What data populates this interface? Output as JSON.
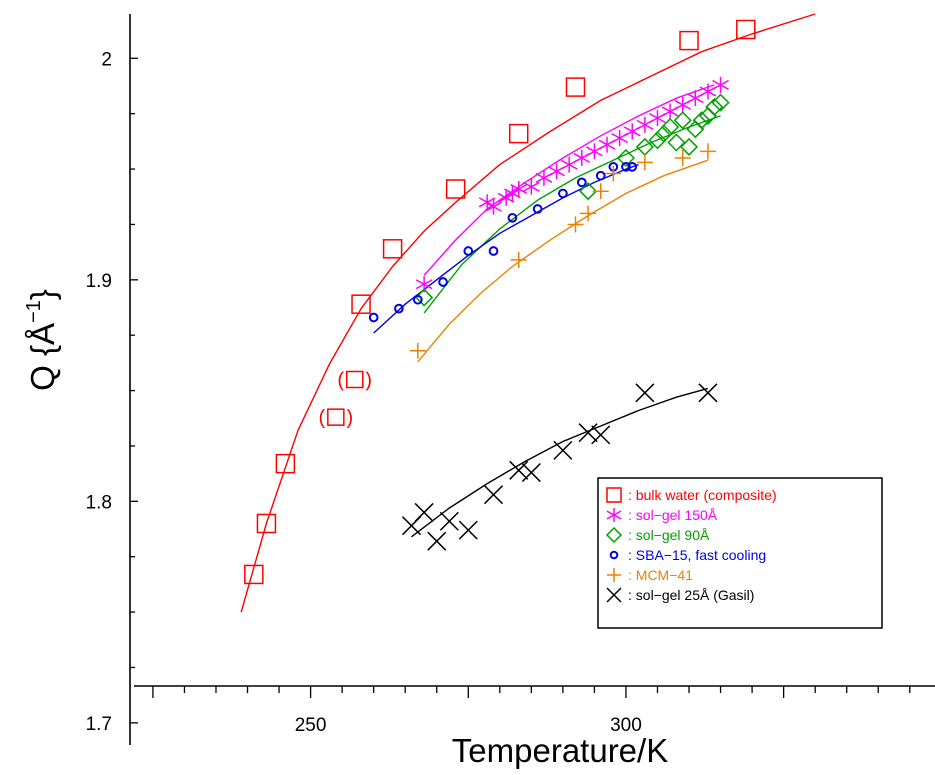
{
  "chart_data": {
    "type": "scatter",
    "xlabel": "Temperature/K",
    "ylabel": "Q  {Å",
    "ylabel_sup": "−1",
    "ylabel_close": "}",
    "x_ticks": [
      250,
      300
    ],
    "x_tick_labels": [
      "250",
      "300"
    ],
    "y_ticks": [
      1.7,
      1.8,
      1.9,
      2.0
    ],
    "y_tick_labels": [
      "1.7",
      "1.8",
      "1.9",
      "2"
    ],
    "xlim": [
      222,
      349
    ],
    "ylim": [
      1.69,
      2.02
    ],
    "grid": false,
    "legend_position": "lower-right",
    "series": [
      {
        "name": ": bulk water (composite)",
        "marker": "square",
        "color": "#ff0000",
        "points": [
          [
            241,
            1.767
          ],
          [
            243,
            1.79
          ],
          [
            246,
            1.817
          ],
          [
            258,
            1.889
          ],
          [
            263,
            1.914
          ],
          [
            273,
            1.941
          ],
          [
            283,
            1.966
          ],
          [
            292,
            1.987
          ],
          [
            310,
            2.008
          ],
          [
            319,
            2.013
          ]
        ],
        "fit": [
          [
            239,
            1.75
          ],
          [
            243,
            1.79
          ],
          [
            248,
            1.832
          ],
          [
            253,
            1.862
          ],
          [
            258,
            1.887
          ],
          [
            263,
            1.906
          ],
          [
            268,
            1.922
          ],
          [
            273,
            1.935
          ],
          [
            280,
            1.952
          ],
          [
            288,
            1.967
          ],
          [
            296,
            1.981
          ],
          [
            304,
            1.992
          ],
          [
            312,
            2.003
          ],
          [
            320,
            2.011
          ],
          [
            330,
            2.02
          ]
        ]
      },
      {
        "name": "bracketed",
        "marker": "square-bracketed",
        "color": "#ff0000",
        "points": [
          [
            254,
            1.838
          ],
          [
            257,
            1.855
          ]
        ]
      },
      {
        "name": ": sol−gel 150Å",
        "marker": "star",
        "color": "#ff00ff",
        "points": [
          [
            268,
            1.898
          ],
          [
            278,
            1.935
          ],
          [
            279,
            1.933
          ],
          [
            281,
            1.937
          ],
          [
            282,
            1.939
          ],
          [
            283,
            1.941
          ],
          [
            285,
            1.942
          ],
          [
            287,
            1.946
          ],
          [
            289,
            1.949
          ],
          [
            291,
            1.952
          ],
          [
            293,
            1.955
          ],
          [
            295,
            1.958
          ],
          [
            297,
            1.961
          ],
          [
            299,
            1.964
          ],
          [
            301,
            1.967
          ],
          [
            303,
            1.97
          ],
          [
            305,
            1.973
          ],
          [
            307,
            1.976
          ],
          [
            309,
            1.979
          ],
          [
            311,
            1.982
          ],
          [
            313,
            1.985
          ],
          [
            315,
            1.988
          ]
        ],
        "fit": [
          [
            268,
            1.902
          ],
          [
            273,
            1.918
          ],
          [
            278,
            1.932
          ],
          [
            284,
            1.944
          ],
          [
            290,
            1.955
          ],
          [
            296,
            1.965
          ],
          [
            302,
            1.974
          ],
          [
            308,
            1.982
          ],
          [
            314,
            1.988
          ]
        ]
      },
      {
        "name": ": sol−gel 90Å",
        "marker": "diamond",
        "color": "#00a000",
        "points": [
          [
            268,
            1.892
          ],
          [
            294,
            1.94
          ],
          [
            300,
            1.955
          ],
          [
            303,
            1.96
          ],
          [
            305,
            1.963
          ],
          [
            306,
            1.966
          ],
          [
            307,
            1.969
          ],
          [
            308,
            1.962
          ],
          [
            309,
            1.972
          ],
          [
            310,
            1.96
          ],
          [
            311,
            1.968
          ],
          [
            312,
            1.972
          ],
          [
            313,
            1.974
          ],
          [
            314,
            1.978
          ],
          [
            315,
            1.98
          ]
        ],
        "fit": [
          [
            268,
            1.885
          ],
          [
            274,
            1.907
          ],
          [
            280,
            1.923
          ],
          [
            286,
            1.936
          ],
          [
            292,
            1.946
          ],
          [
            298,
            1.954
          ],
          [
            304,
            1.962
          ],
          [
            310,
            1.969
          ],
          [
            315,
            1.974
          ]
        ]
      },
      {
        "name": ": SBA−15, fast cooling",
        "marker": "circle",
        "color": "#0000e0",
        "points": [
          [
            260,
            1.883
          ],
          [
            264,
            1.887
          ],
          [
            267,
            1.891
          ],
          [
            271,
            1.899
          ],
          [
            275,
            1.913
          ],
          [
            279,
            1.913
          ],
          [
            282,
            1.928
          ],
          [
            286,
            1.932
          ],
          [
            290,
            1.939
          ],
          [
            293,
            1.944
          ],
          [
            296,
            1.947
          ],
          [
            298,
            1.951
          ],
          [
            300,
            1.951
          ],
          [
            301,
            1.951
          ]
        ],
        "fit": [
          [
            260,
            1.876
          ],
          [
            265,
            1.889
          ],
          [
            270,
            1.9
          ],
          [
            275,
            1.911
          ],
          [
            280,
            1.921
          ],
          [
            285,
            1.929
          ],
          [
            290,
            1.937
          ],
          [
            295,
            1.944
          ],
          [
            300,
            1.95
          ],
          [
            302,
            1.952
          ]
        ]
      },
      {
        "name": ": MCM−41",
        "marker": "plus",
        "color": "#ee8000",
        "points": [
          [
            267,
            1.868
          ],
          [
            283,
            1.909
          ],
          [
            292,
            1.925
          ],
          [
            294,
            1.93
          ],
          [
            296,
            1.94
          ],
          [
            298,
            1.948
          ],
          [
            303,
            1.953
          ],
          [
            309,
            1.955
          ],
          [
            313,
            1.958
          ]
        ],
        "fit": [
          [
            267,
            1.863
          ],
          [
            272,
            1.88
          ],
          [
            277,
            1.894
          ],
          [
            282,
            1.906
          ],
          [
            288,
            1.918
          ],
          [
            294,
            1.929
          ],
          [
            300,
            1.939
          ],
          [
            306,
            1.947
          ],
          [
            313,
            1.954
          ]
        ]
      },
      {
        "name": ": sol−gel 25Å  (Gasil)",
        "marker": "x",
        "color": "#000000",
        "points": [
          [
            266,
            1.789
          ],
          [
            268,
            1.795
          ],
          [
            270,
            1.782
          ],
          [
            272,
            1.791
          ],
          [
            275,
            1.787
          ],
          [
            279,
            1.803
          ],
          [
            283,
            1.814
          ],
          [
            285,
            1.813
          ],
          [
            290,
            1.823
          ],
          [
            294,
            1.831
          ],
          [
            296,
            1.83
          ],
          [
            303,
            1.849
          ],
          [
            313,
            1.849
          ]
        ],
        "fit": [
          [
            266,
            1.784
          ],
          [
            272,
            1.797
          ],
          [
            278,
            1.808
          ],
          [
            284,
            1.818
          ],
          [
            290,
            1.827
          ],
          [
            296,
            1.834
          ],
          [
            302,
            1.841
          ],
          [
            308,
            1.847
          ],
          [
            313,
            1.851
          ]
        ]
      }
    ]
  },
  "legend": {
    "items": [
      {
        "label": ": bulk water (composite)",
        "color": "#ff0000",
        "marker": "square"
      },
      {
        "label": ": sol−gel 150Å",
        "color": "#ff00ff",
        "marker": "star"
      },
      {
        "label": ": sol−gel 90Å",
        "color": "#00a000",
        "marker": "diamond"
      },
      {
        "label": ": SBA−15, fast cooling",
        "color": "#0000e0",
        "marker": "circle"
      },
      {
        "label": ": MCM−41",
        "color": "#ee8000",
        "marker": "plus"
      },
      {
        "label": ": sol−gel 25Å  (Gasil)",
        "color": "#000000",
        "marker": "x"
      }
    ]
  }
}
